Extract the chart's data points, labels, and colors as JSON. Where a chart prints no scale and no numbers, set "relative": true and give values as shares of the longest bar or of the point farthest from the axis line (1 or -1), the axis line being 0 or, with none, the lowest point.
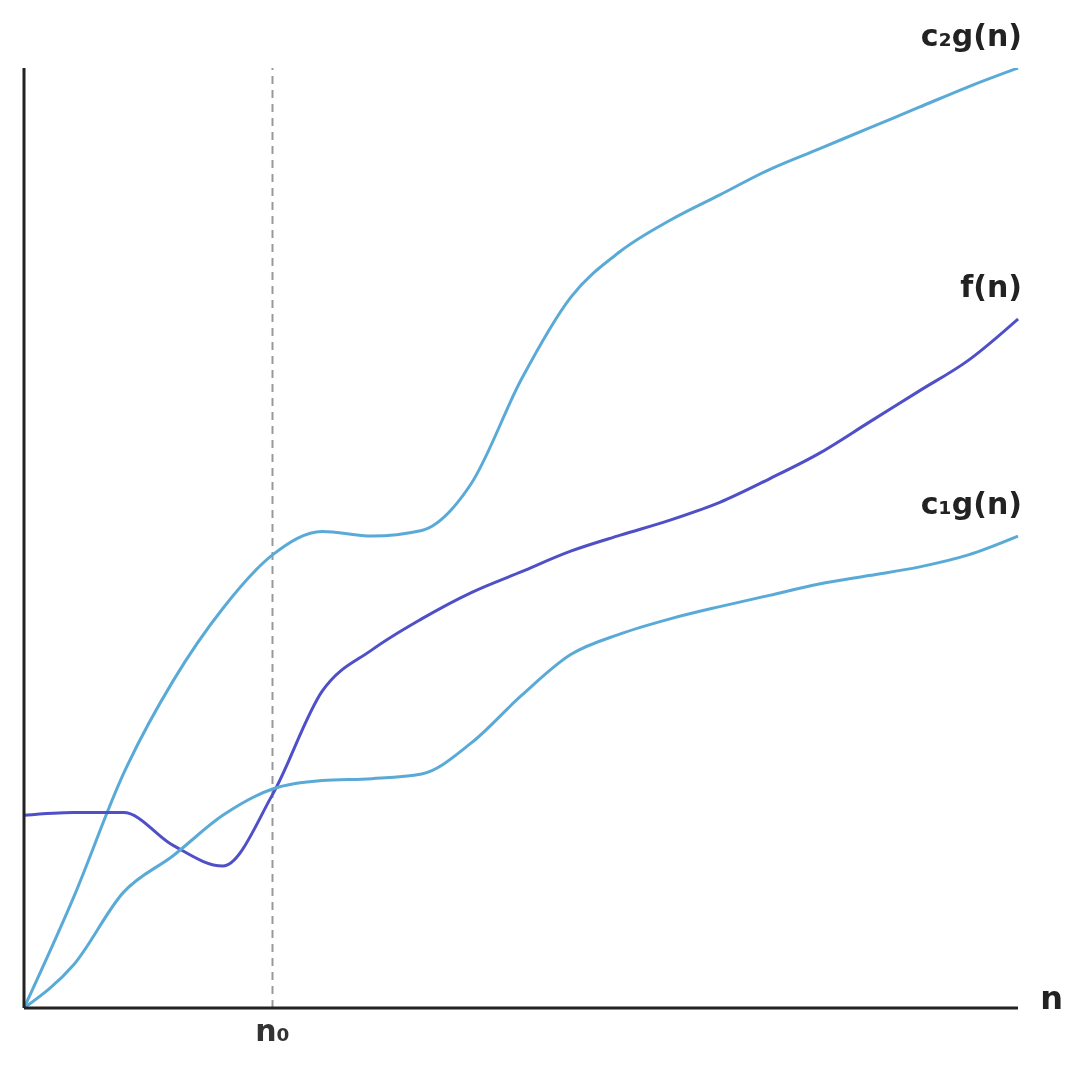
{
  "chart_data": {
    "type": "line",
    "relative": true,
    "xlabel": "n",
    "marker": "none",
    "line_style": "solid",
    "legend": false,
    "categories": [
      null,
      null,
      null,
      null,
      null,
      null,
      null,
      null,
      null,
      null,
      null,
      null,
      null,
      null,
      null,
      null,
      null,
      null,
      null,
      null,
      null
    ],
    "annotations": [
      "n₀"
    ],
    "series": [
      {
        "name": "c₂g(n)",
        "color": "#5aaad8",
        "values": [
          0,
          0.118,
          0.249,
          0.348,
          0.425,
          0.482,
          0.507,
          0.502,
          0.508,
          0.558,
          0.668,
          0.756,
          0.805,
          0.838,
          0.865,
          0.892,
          0.914,
          0.936,
          0.958,
          0.98,
          1
        ]
      },
      {
        "name": "f(n)",
        "color": "#4f4fc8",
        "values": [
          0.205,
          0.208,
          0.208,
          0.173,
          0.151,
          0.227,
          0.337,
          0.381,
          0.414,
          0.442,
          0.464,
          0.486,
          0.503,
          0.519,
          0.538,
          0.563,
          0.59,
          0.623,
          0.656,
          0.689,
          0.733
        ]
      },
      {
        "name": "c₁g(n)",
        "color": "#5aaad8",
        "values": [
          0,
          0.046,
          0.123,
          0.162,
          0.205,
          0.233,
          0.242,
          0.244,
          0.249,
          0.282,
          0.332,
          0.376,
          0.398,
          0.414,
          0.427,
          0.439,
          0.451,
          0.46,
          0.469,
          0.482,
          0.502
        ]
      }
    ]
  }
}
